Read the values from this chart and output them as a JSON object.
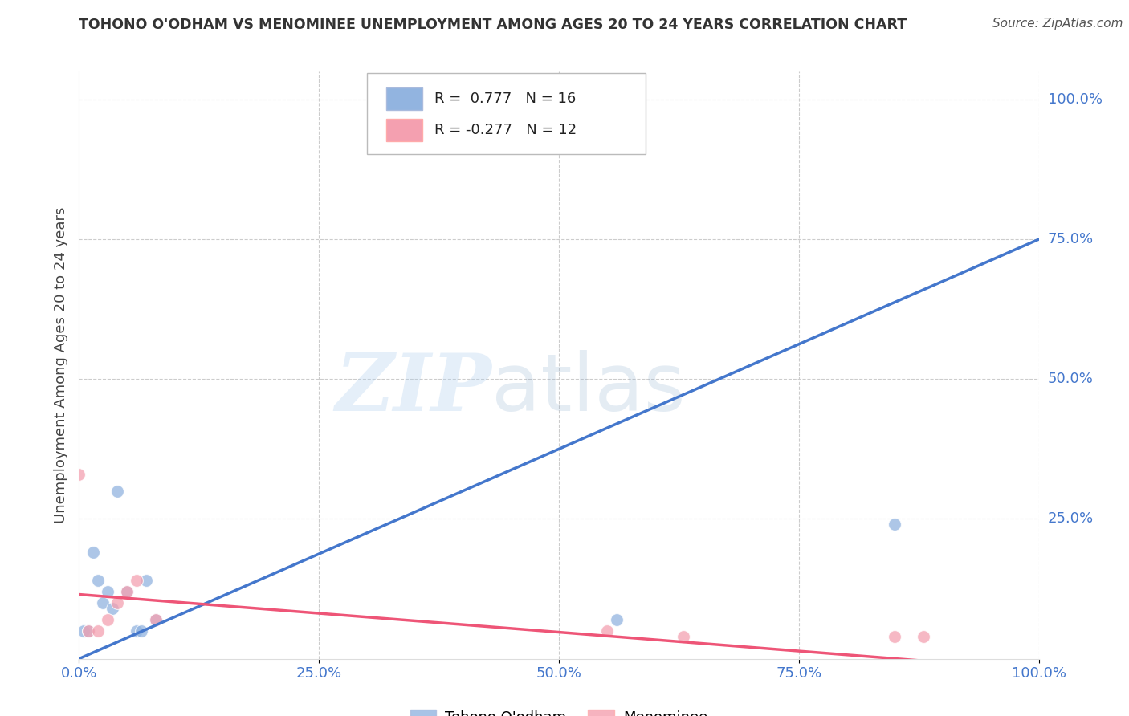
{
  "title": "TOHONO O'ODHAM VS MENOMINEE UNEMPLOYMENT AMONG AGES 20 TO 24 YEARS CORRELATION CHART",
  "source": "Source: ZipAtlas.com",
  "ylabel": "Unemployment Among Ages 20 to 24 years",
  "xlim": [
    0,
    1
  ],
  "ylim": [
    0,
    1.05
  ],
  "xticks": [
    0.0,
    0.25,
    0.5,
    0.75,
    1.0
  ],
  "xtick_labels": [
    "0.0%",
    "25.0%",
    "50.0%",
    "75.0%",
    "100.0%"
  ],
  "ytick_vals": [
    0.25,
    0.5,
    0.75,
    1.0
  ],
  "ytick_labels": [
    "25.0%",
    "50.0%",
    "75.0%",
    "100.0%"
  ],
  "blue_color": "#92B4E0",
  "pink_color": "#F4A0B0",
  "blue_line_color": "#4477CC",
  "pink_line_color": "#EE5577",
  "blue_label": "Tohono O'odham",
  "pink_label": "Menominee",
  "legend_blue_R": "R =  0.777",
  "legend_blue_N": "N = 16",
  "legend_pink_R": "R = -0.277",
  "legend_pink_N": "N = 12",
  "blue_line_x0": 0.0,
  "blue_line_y0": 0.0,
  "blue_line_x1": 1.0,
  "blue_line_y1": 0.75,
  "pink_line_x0": 0.0,
  "pink_line_y0": 0.115,
  "pink_line_x1": 1.0,
  "pink_line_y1": -0.02,
  "blue_points_x": [
    0.005,
    0.01,
    0.015,
    0.02,
    0.025,
    0.03,
    0.035,
    0.04,
    0.05,
    0.06,
    0.065,
    0.07,
    0.08,
    0.43,
    0.56,
    0.85
  ],
  "blue_points_y": [
    0.05,
    0.05,
    0.19,
    0.14,
    0.1,
    0.12,
    0.09,
    0.3,
    0.12,
    0.05,
    0.05,
    0.14,
    0.07,
    1.0,
    0.07,
    0.24
  ],
  "pink_points_x": [
    0.0,
    0.01,
    0.02,
    0.03,
    0.04,
    0.05,
    0.06,
    0.08,
    0.55,
    0.63,
    0.85,
    0.88
  ],
  "pink_points_y": [
    0.33,
    0.05,
    0.05,
    0.07,
    0.1,
    0.12,
    0.14,
    0.07,
    0.05,
    0.04,
    0.04,
    0.04
  ],
  "watermark_zip": "ZIP",
  "watermark_atlas": "atlas",
  "background_color": "#FFFFFF",
  "grid_color": "#CCCCCC",
  "tick_color": "#4477CC",
  "title_color": "#333333",
  "source_color": "#555555"
}
